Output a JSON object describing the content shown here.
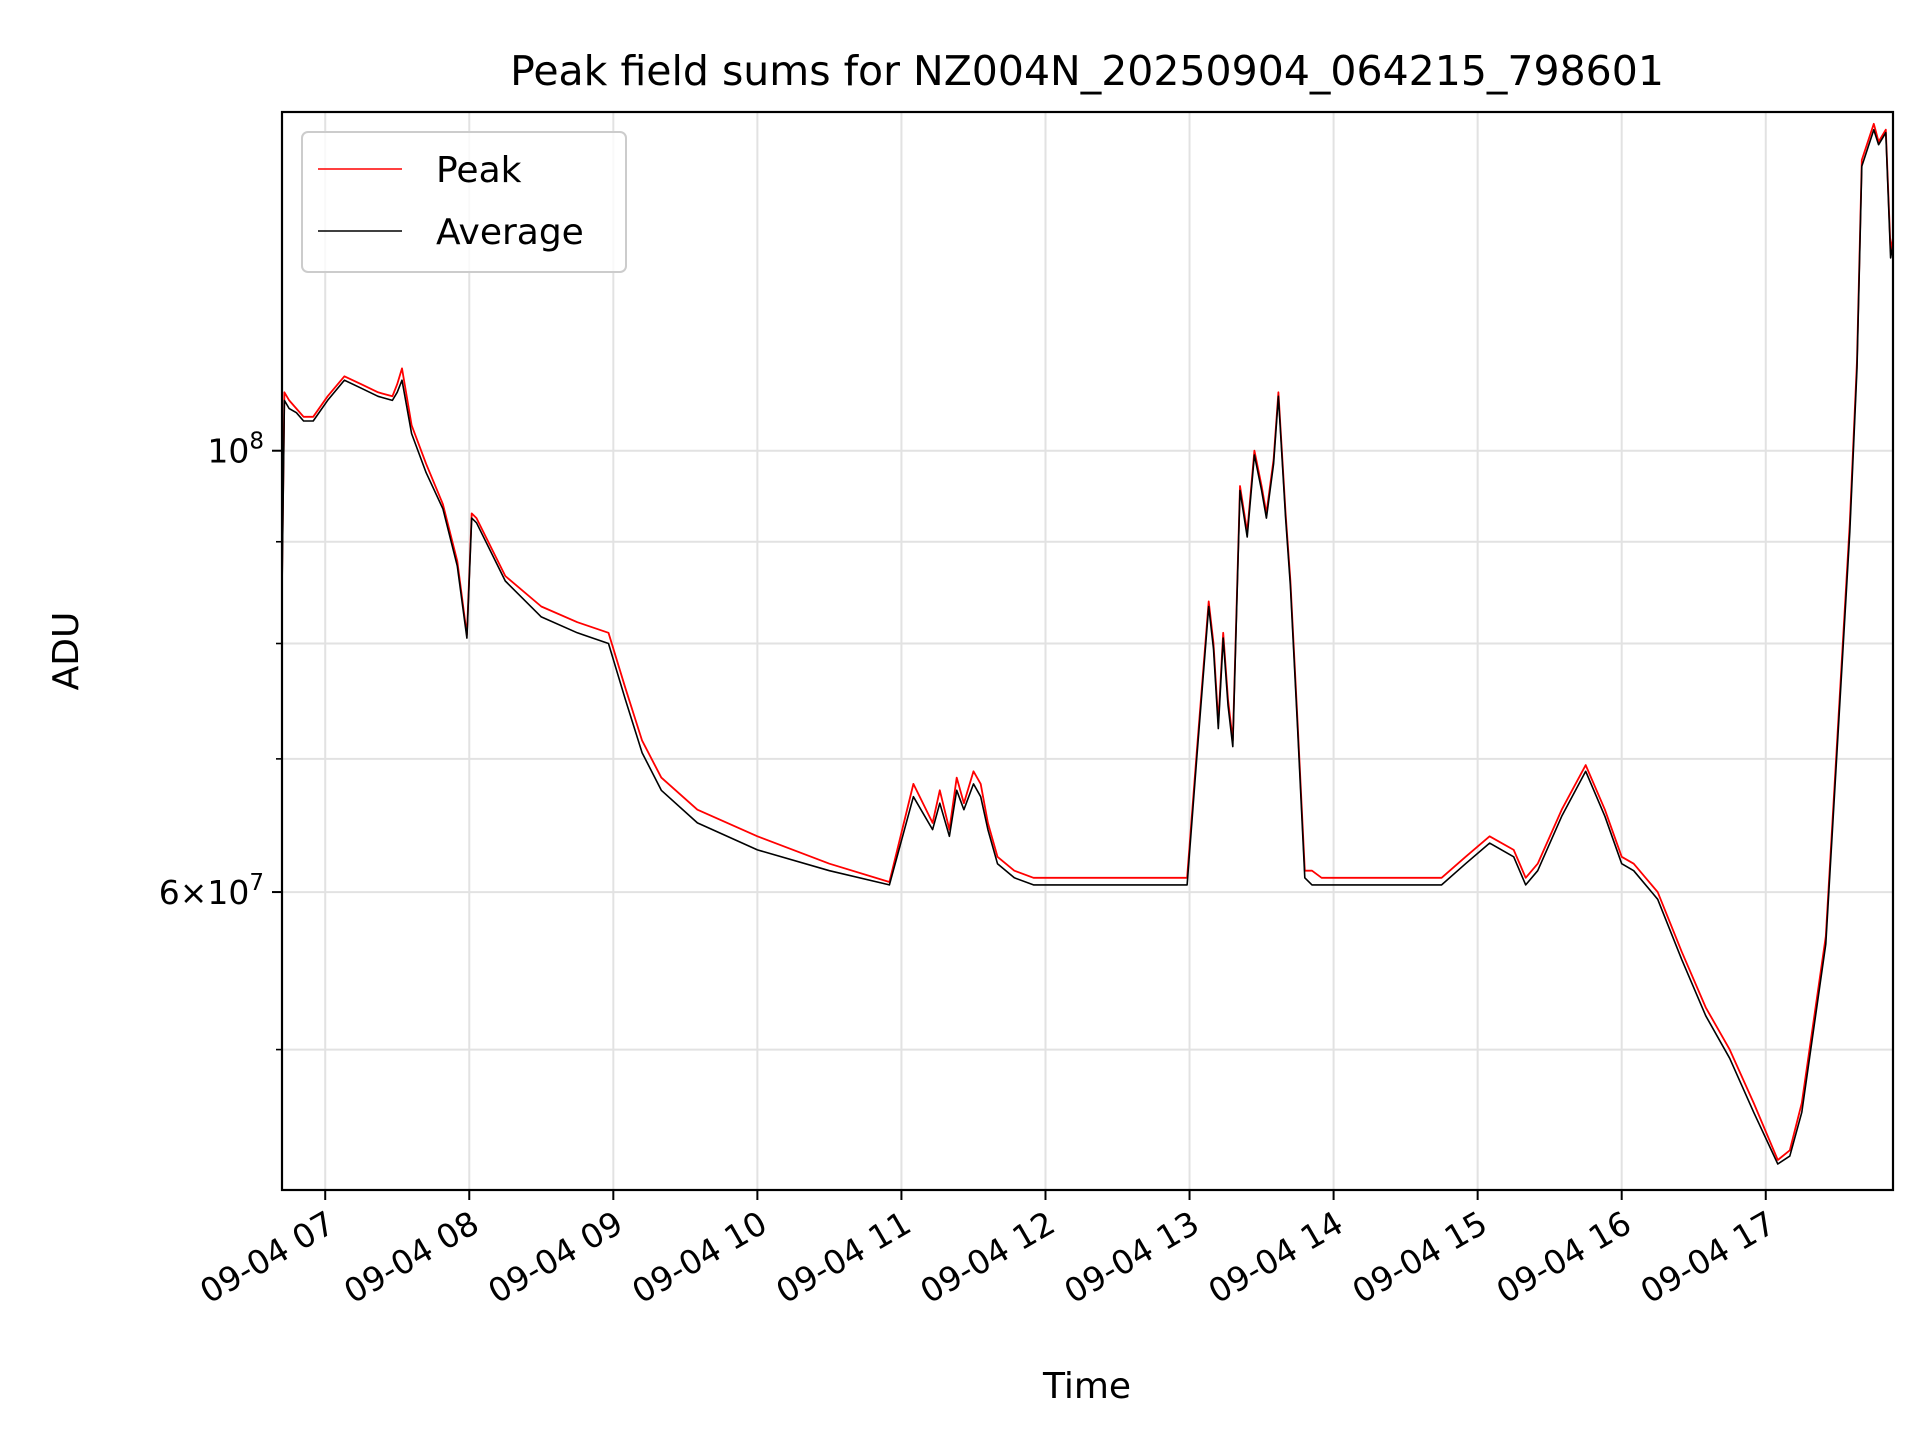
{
  "chart_data": {
    "type": "line",
    "title": "Peak field sums for NZ004N_20250904_064215_798601",
    "xlabel": "Time",
    "ylabel": "ADU",
    "x_axis": "time (hours)",
    "y_scale": "log",
    "xlim": [
      "2025-09-04 06:42",
      "2025-09-04 17:53"
    ],
    "ylim": [
      42500000,
      148000000
    ],
    "x_tick_labels": [
      "09-04 07",
      "09-04 08",
      "09-04 09",
      "09-04 10",
      "09-04 11",
      "09-04 12",
      "09-04 13",
      "09-04 14",
      "09-04 15",
      "09-04 16",
      "09-04 17"
    ],
    "x_ticks": [
      "2025-09-04 07:00",
      "2025-09-04 08:00",
      "2025-09-04 09:00",
      "2025-09-04 10:00",
      "2025-09-04 11:00",
      "2025-09-04 12:00",
      "2025-09-04 13:00",
      "2025-09-04 14:00",
      "2025-09-04 15:00",
      "2025-09-04 16:00",
      "2025-09-04 17:00"
    ],
    "y_major_ticks": [
      {
        "value": 100000000,
        "label": "10",
        "exp": "8"
      },
      {
        "value": 60000000,
        "label": "6×10",
        "exp": "7"
      }
    ],
    "y_minor_gridlines": [
      50000000,
      70000000,
      80000000,
      90000000
    ],
    "grid": true,
    "legend": {
      "placement": "upper left",
      "entries": [
        {
          "name": "Peak",
          "color": "#ff0000"
        },
        {
          "name": "Average",
          "color": "#000000"
        }
      ]
    },
    "series": [
      {
        "name": "Peak",
        "color": "#ff0000",
        "x": [
          "2025-09-04 06:42",
          "2025-09-04 06:43",
          "2025-09-04 06:45",
          "2025-09-04 06:48",
          "2025-09-04 06:51",
          "2025-09-04 06:55",
          "2025-09-04 07:01",
          "2025-09-04 07:08",
          "2025-09-04 07:15",
          "2025-09-04 07:22",
          "2025-09-04 07:28",
          "2025-09-04 07:30",
          "2025-09-04 07:32",
          "2025-09-04 07:36",
          "2025-09-04 07:42",
          "2025-09-04 07:49",
          "2025-09-04 07:55",
          "2025-09-04 07:59",
          "2025-09-04 08:01",
          "2025-09-04 08:03",
          "2025-09-04 08:15",
          "2025-09-04 08:30",
          "2025-09-04 08:45",
          "2025-09-04 08:58",
          "2025-09-04 09:05",
          "2025-09-04 09:12",
          "2025-09-04 09:20",
          "2025-09-04 09:35",
          "2025-09-04 10:00",
          "2025-09-04 10:30",
          "2025-09-04 10:55",
          "2025-09-04 11:05",
          "2025-09-04 11:13",
          "2025-09-04 11:16",
          "2025-09-04 11:20",
          "2025-09-04 11:23",
          "2025-09-04 11:26",
          "2025-09-04 11:30",
          "2025-09-04 11:33",
          "2025-09-04 11:36",
          "2025-09-04 11:40",
          "2025-09-04 11:47",
          "2025-09-04 11:55",
          "2025-09-04 12:10",
          "2025-09-04 12:40",
          "2025-09-04 12:59",
          "2025-09-04 13:03",
          "2025-09-04 13:08",
          "2025-09-04 13:10",
          "2025-09-04 13:12",
          "2025-09-04 13:14",
          "2025-09-04 13:16",
          "2025-09-04 13:18",
          "2025-09-04 13:21",
          "2025-09-04 13:24",
          "2025-09-04 13:27",
          "2025-09-04 13:30",
          "2025-09-04 13:32",
          "2025-09-04 13:35",
          "2025-09-04 13:37",
          "2025-09-04 13:40",
          "2025-09-04 13:42",
          "2025-09-04 13:45",
          "2025-09-04 13:48",
          "2025-09-04 13:51",
          "2025-09-04 13:55",
          "2025-09-04 14:10",
          "2025-09-04 14:30",
          "2025-09-04 14:45",
          "2025-09-04 14:55",
          "2025-09-04 15:05",
          "2025-09-04 15:15",
          "2025-09-04 15:20",
          "2025-09-04 15:25",
          "2025-09-04 15:35",
          "2025-09-04 15:45",
          "2025-09-04 15:53",
          "2025-09-04 16:00",
          "2025-09-04 16:05",
          "2025-09-04 16:15",
          "2025-09-04 16:25",
          "2025-09-04 16:35",
          "2025-09-04 16:45",
          "2025-09-04 16:55",
          "2025-09-04 17:05",
          "2025-09-04 17:10",
          "2025-09-04 17:15",
          "2025-09-04 17:25",
          "2025-09-04 17:35",
          "2025-09-04 17:38",
          "2025-09-04 17:40",
          "2025-09-04 17:45",
          "2025-09-04 17:47",
          "2025-09-04 17:50",
          "2025-09-04 17:52",
          "2025-09-04 17:53"
        ],
        "y": [
          86000000,
          107000000,
          106000000,
          105000000,
          104000000,
          104000000,
          106500000,
          109000000,
          108000000,
          107000000,
          106500000,
          108000000,
          110000000,
          103000000,
          98500000,
          94000000,
          88000000,
          80800000,
          93000000,
          92500000,
          86500000,
          83500000,
          82000000,
          81000000,
          76000000,
          71500000,
          68500000,
          66000000,
          64000000,
          62000000,
          60700000,
          68000000,
          65000000,
          67500000,
          64500000,
          68500000,
          66500000,
          69000000,
          68000000,
          65000000,
          62500000,
          61500000,
          61000000,
          61000000,
          61000000,
          61000000,
          70500000,
          84000000,
          80000000,
          73000000,
          81000000,
          75000000,
          71500000,
          96000000,
          91000000,
          100000000,
          96000000,
          93000000,
          99000000,
          107000000,
          93000000,
          86000000,
          73000000,
          61500000,
          61500000,
          61000000,
          61000000,
          61000000,
          61000000,
          62500000,
          64000000,
          63000000,
          61000000,
          62000000,
          66000000,
          69500000,
          66000000,
          62500000,
          62000000,
          60000000,
          56000000,
          52500000,
          50000000,
          47000000,
          44000000,
          44500000,
          47000000,
          57000000,
          92000000,
          111000000,
          140000000,
          146000000,
          143000000,
          145000000,
          126000000,
          128000000
        ]
      },
      {
        "name": "Average",
        "color": "#000000",
        "x": [
          "2025-09-04 06:42",
          "2025-09-04 06:43",
          "2025-09-04 06:45",
          "2025-09-04 06:48",
          "2025-09-04 06:51",
          "2025-09-04 06:55",
          "2025-09-04 07:01",
          "2025-09-04 07:08",
          "2025-09-04 07:15",
          "2025-09-04 07:22",
          "2025-09-04 07:28",
          "2025-09-04 07:30",
          "2025-09-04 07:32",
          "2025-09-04 07:36",
          "2025-09-04 07:42",
          "2025-09-04 07:49",
          "2025-09-04 07:55",
          "2025-09-04 07:59",
          "2025-09-04 08:01",
          "2025-09-04 08:03",
          "2025-09-04 08:15",
          "2025-09-04 08:30",
          "2025-09-04 08:45",
          "2025-09-04 08:58",
          "2025-09-04 09:05",
          "2025-09-04 09:12",
          "2025-09-04 09:20",
          "2025-09-04 09:35",
          "2025-09-04 10:00",
          "2025-09-04 10:30",
          "2025-09-04 10:55",
          "2025-09-04 11:05",
          "2025-09-04 11:13",
          "2025-09-04 11:16",
          "2025-09-04 11:20",
          "2025-09-04 11:23",
          "2025-09-04 11:26",
          "2025-09-04 11:30",
          "2025-09-04 11:33",
          "2025-09-04 11:36",
          "2025-09-04 11:40",
          "2025-09-04 11:47",
          "2025-09-04 11:55",
          "2025-09-04 12:10",
          "2025-09-04 12:40",
          "2025-09-04 12:59",
          "2025-09-04 13:03",
          "2025-09-04 13:08",
          "2025-09-04 13:10",
          "2025-09-04 13:12",
          "2025-09-04 13:14",
          "2025-09-04 13:16",
          "2025-09-04 13:18",
          "2025-09-04 13:21",
          "2025-09-04 13:24",
          "2025-09-04 13:27",
          "2025-09-04 13:30",
          "2025-09-04 13:32",
          "2025-09-04 13:35",
          "2025-09-04 13:37",
          "2025-09-04 13:40",
          "2025-09-04 13:42",
          "2025-09-04 13:45",
          "2025-09-04 13:48",
          "2025-09-04 13:51",
          "2025-09-04 13:55",
          "2025-09-04 14:10",
          "2025-09-04 14:30",
          "2025-09-04 14:45",
          "2025-09-04 14:55",
          "2025-09-04 15:05",
          "2025-09-04 15:15",
          "2025-09-04 15:20",
          "2025-09-04 15:25",
          "2025-09-04 15:35",
          "2025-09-04 15:45",
          "2025-09-04 15:53",
          "2025-09-04 16:00",
          "2025-09-04 16:05",
          "2025-09-04 16:15",
          "2025-09-04 16:25",
          "2025-09-04 16:35",
          "2025-09-04 16:45",
          "2025-09-04 16:55",
          "2025-09-04 17:05",
          "2025-09-04 17:10",
          "2025-09-04 17:15",
          "2025-09-04 17:25",
          "2025-09-04 17:35",
          "2025-09-04 17:38",
          "2025-09-04 17:40",
          "2025-09-04 17:45",
          "2025-09-04 17:47",
          "2025-09-04 17:50",
          "2025-09-04 17:52",
          "2025-09-04 17:53"
        ],
        "y": [
          85000000,
          106000000,
          105000000,
          104500000,
          103500000,
          103500000,
          106000000,
          108500000,
          107500000,
          106500000,
          106000000,
          107000000,
          108500000,
          102000000,
          97500000,
          93500000,
          87500000,
          80500000,
          92500000,
          92000000,
          86000000,
          82500000,
          81000000,
          80000000,
          75000000,
          70500000,
          67500000,
          65000000,
          63000000,
          61500000,
          60500000,
          67000000,
          64500000,
          66500000,
          64000000,
          67500000,
          66000000,
          68000000,
          67000000,
          64500000,
          62000000,
          61000000,
          60500000,
          60500000,
          60500000,
          60500000,
          70000000,
          83500000,
          79500000,
          72500000,
          80500000,
          74500000,
          71000000,
          95500000,
          90500000,
          99500000,
          95500000,
          92500000,
          98500000,
          106500000,
          92500000,
          85500000,
          72500000,
          61000000,
          60500000,
          60500000,
          60500000,
          60500000,
          60500000,
          62000000,
          63500000,
          62500000,
          60500000,
          61500000,
          65500000,
          69000000,
          65500000,
          62000000,
          61500000,
          59500000,
          55500000,
          52000000,
          49500000,
          46500000,
          43800000,
          44200000,
          46500000,
          56500000,
          91000000,
          110000000,
          139000000,
          145000000,
          142500000,
          144500000,
          125000000,
          127000000
        ]
      }
    ]
  }
}
